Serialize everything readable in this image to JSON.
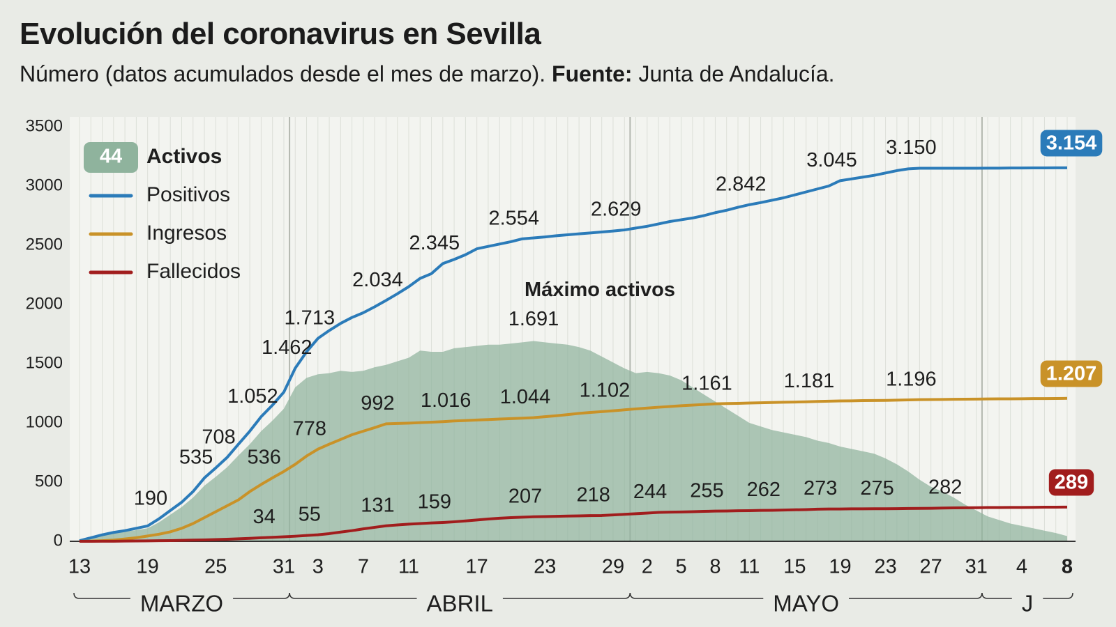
{
  "title": "Evolución del coronavirus en Sevilla",
  "subtitle": "Número (datos acumulados desde el mes de marzo).",
  "source_label": "Fuente:",
  "source": "Junta de Andalucía.",
  "chart_data": {
    "type": "line",
    "annotation": "Máximo activos",
    "ylim": [
      0,
      3500
    ],
    "yticks": [
      0,
      500,
      1000,
      1500,
      2000,
      2500,
      3000,
      3500
    ],
    "grid": false,
    "categories": [
      "13",
      null,
      null,
      null,
      null,
      null,
      "19",
      null,
      null,
      null,
      null,
      null,
      "25",
      null,
      null,
      null,
      null,
      null,
      "31",
      null,
      null,
      "3",
      null,
      null,
      null,
      "7",
      null,
      null,
      null,
      "11",
      null,
      null,
      null,
      null,
      null,
      "17",
      null,
      null,
      null,
      null,
      null,
      "23",
      null,
      null,
      null,
      null,
      null,
      "29",
      null,
      null,
      "2",
      null,
      null,
      "5",
      null,
      null,
      "8",
      null,
      null,
      "11",
      null,
      null,
      null,
      "15",
      null,
      null,
      null,
      "19",
      null,
      null,
      null,
      "23",
      null,
      null,
      null,
      "27",
      null,
      null,
      null,
      "31",
      null,
      null,
      null,
      "4",
      null,
      null,
      null,
      "8"
    ],
    "x_groups": [
      {
        "label": "MARZO",
        "count": 19
      },
      {
        "label": "ABRIL",
        "count": 30
      },
      {
        "label": "MAYO",
        "count": 31
      },
      {
        "label": "J",
        "count": 8
      }
    ],
    "series": [
      {
        "name": "Activos",
        "color": "#8fb39d",
        "area": true,
        "values": [
          5,
          28,
          50,
          68,
          80,
          95,
          110,
          160,
          225,
          290,
          370,
          470,
          545,
          625,
          725,
          820,
          930,
          1020,
          1120,
          1300,
          1380,
          1410,
          1420,
          1440,
          1430,
          1440,
          1470,
          1490,
          1520,
          1550,
          1610,
          1600,
          1600,
          1630,
          1640,
          1650,
          1660,
          1660,
          1670,
          1680,
          1691,
          1680,
          1670,
          1660,
          1640,
          1610,
          1560,
          1510,
          1460,
          1420,
          1430,
          1420,
          1400,
          1360,
          1300,
          1240,
          1180,
          1120,
          1060,
          1000,
          970,
          940,
          920,
          900,
          880,
          850,
          830,
          800,
          780,
          760,
          740,
          700,
          650,
          590,
          520,
          460,
          420,
          370,
          310,
          260,
          210,
          180,
          150,
          130,
          110,
          90,
          70,
          44
        ],
        "value_labels": [
          null,
          null,
          null,
          null,
          null,
          null,
          null,
          null,
          null,
          null,
          null,
          null,
          null,
          null,
          null,
          null,
          null,
          null,
          null,
          null,
          null,
          null,
          null,
          null,
          null,
          null,
          null,
          null,
          null,
          null,
          null,
          null,
          null,
          null,
          null,
          null,
          null,
          null,
          null,
          null,
          "1.691",
          null,
          null,
          null,
          null,
          null,
          null,
          null,
          null,
          null,
          null,
          null,
          null,
          null,
          null,
          null,
          null,
          null,
          null,
          null,
          null,
          null,
          null,
          null,
          null,
          null,
          null,
          null,
          null,
          null,
          null,
          null,
          null,
          null,
          null,
          null,
          null,
          null,
          null,
          null,
          null,
          null,
          null,
          null,
          null,
          null,
          null,
          null
        ]
      },
      {
        "name": "Positivos",
        "color": "#2b7bb9",
        "values": [
          5,
          30,
          55,
          75,
          90,
          110,
          130,
          190,
          260,
          330,
          420,
          535,
          620,
          708,
          820,
          930,
          1052,
          1150,
          1260,
          1462,
          1600,
          1713,
          1780,
          1840,
          1890,
          1930,
          1980,
          2034,
          2090,
          2150,
          2220,
          2260,
          2345,
          2380,
          2420,
          2470,
          2490,
          2510,
          2530,
          2554,
          2562,
          2570,
          2580,
          2588,
          2596,
          2604,
          2612,
          2620,
          2629,
          2645,
          2660,
          2680,
          2700,
          2715,
          2730,
          2750,
          2775,
          2795,
          2820,
          2842,
          2860,
          2880,
          2900,
          2925,
          2950,
          2975,
          3000,
          3045,
          3060,
          3075,
          3090,
          3110,
          3130,
          3145,
          3150,
          3150,
          3150,
          3150,
          3150,
          3150,
          3151,
          3151,
          3152,
          3152,
          3153,
          3153,
          3154,
          3154
        ],
        "value_labels": [
          null,
          null,
          null,
          null,
          null,
          null,
          null,
          "190",
          null,
          null,
          null,
          "535",
          null,
          "708",
          null,
          null,
          "1.052",
          null,
          null,
          "1.462",
          null,
          "1.713",
          null,
          null,
          null,
          null,
          null,
          "2.034",
          null,
          null,
          null,
          null,
          "2.345",
          null,
          null,
          null,
          null,
          null,
          null,
          "2.554",
          null,
          null,
          null,
          null,
          null,
          null,
          null,
          null,
          "2.629",
          null,
          null,
          null,
          null,
          null,
          null,
          null,
          null,
          null,
          null,
          "2.842",
          null,
          null,
          null,
          null,
          null,
          null,
          null,
          "3.045",
          null,
          null,
          null,
          null,
          null,
          null,
          "3.150",
          null,
          null,
          null,
          null,
          null,
          null,
          null,
          null,
          null,
          null,
          null,
          null,
          "3.154"
        ]
      },
      {
        "name": "Ingresos",
        "color": "#c99228",
        "values": [
          0,
          2,
          5,
          10,
          20,
          30,
          45,
          60,
          80,
          110,
          150,
          200,
          250,
          300,
          350,
          420,
          480,
          536,
          590,
          650,
          720,
          778,
          820,
          860,
          900,
          930,
          960,
          992,
          995,
          998,
          1002,
          1006,
          1010,
          1016,
          1020,
          1024,
          1028,
          1032,
          1036,
          1040,
          1044,
          1052,
          1060,
          1070,
          1080,
          1088,
          1095,
          1102,
          1110,
          1118,
          1125,
          1132,
          1138,
          1145,
          1150,
          1155,
          1161,
          1163,
          1165,
          1168,
          1170,
          1172,
          1174,
          1176,
          1178,
          1181,
          1183,
          1185,
          1186,
          1188,
          1189,
          1190,
          1192,
          1194,
          1196,
          1197,
          1198,
          1199,
          1200,
          1201,
          1202,
          1203,
          1203,
          1204,
          1205,
          1205,
          1206,
          1207
        ],
        "value_labels": [
          null,
          null,
          null,
          null,
          null,
          null,
          null,
          null,
          null,
          null,
          null,
          null,
          null,
          null,
          null,
          null,
          null,
          "536",
          null,
          null,
          null,
          "778",
          null,
          null,
          null,
          null,
          null,
          "992",
          null,
          null,
          null,
          null,
          null,
          "1.016",
          null,
          null,
          null,
          null,
          null,
          null,
          "1.044",
          null,
          null,
          null,
          null,
          null,
          null,
          "1.102",
          null,
          null,
          null,
          null,
          null,
          null,
          null,
          null,
          "1.161",
          null,
          null,
          null,
          null,
          null,
          null,
          null,
          null,
          "1.181",
          null,
          null,
          null,
          null,
          null,
          null,
          null,
          null,
          "1.196",
          null,
          null,
          null,
          null,
          null,
          null,
          null,
          null,
          null,
          null,
          null,
          null,
          "1.207"
        ]
      },
      {
        "name": "Fallecidos",
        "color": "#a11d1d",
        "values": [
          0,
          0,
          1,
          1,
          2,
          3,
          4,
          5,
          6,
          8,
          10,
          12,
          15,
          18,
          21,
          25,
          30,
          34,
          38,
          43,
          49,
          55,
          65,
          78,
          90,
          105,
          118,
          131,
          138,
          145,
          150,
          155,
          159,
          165,
          172,
          180,
          188,
          195,
          200,
          204,
          207,
          209,
          211,
          213,
          215,
          217,
          218,
          223,
          228,
          233,
          238,
          244,
          246,
          248,
          250,
          253,
          255,
          256,
          258,
          259,
          261,
          262,
          264,
          266,
          268,
          271,
          273,
          273,
          274,
          274,
          275,
          275,
          276,
          277,
          278,
          279,
          281,
          282,
          283,
          284,
          285,
          285,
          286,
          286,
          287,
          288,
          288,
          289
        ],
        "value_labels": [
          null,
          null,
          null,
          null,
          null,
          null,
          null,
          null,
          null,
          null,
          null,
          null,
          null,
          null,
          null,
          null,
          null,
          "34",
          null,
          null,
          null,
          "55",
          null,
          null,
          null,
          null,
          null,
          "131",
          null,
          null,
          null,
          null,
          "159",
          null,
          null,
          null,
          null,
          null,
          null,
          null,
          "207",
          null,
          null,
          null,
          null,
          null,
          "218",
          null,
          null,
          null,
          null,
          "244",
          null,
          null,
          null,
          null,
          "255",
          null,
          null,
          null,
          null,
          "262",
          null,
          null,
          null,
          null,
          "273",
          null,
          null,
          null,
          null,
          "275",
          null,
          null,
          null,
          null,
          null,
          "282",
          null,
          null,
          null,
          null,
          null,
          null,
          null,
          null,
          null,
          "289"
        ]
      }
    ]
  }
}
